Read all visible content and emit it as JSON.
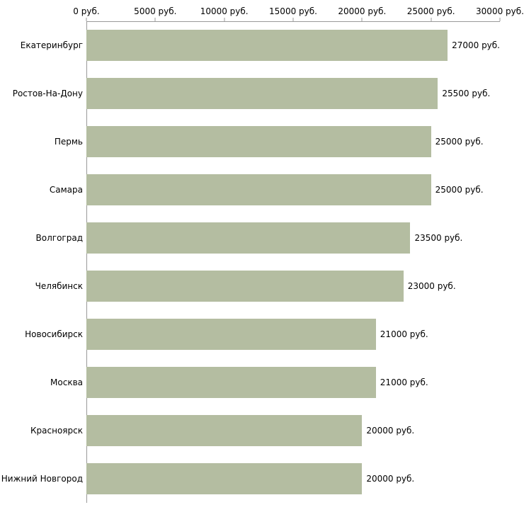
{
  "chart_data": {
    "type": "bar",
    "orientation": "horizontal",
    "title": "",
    "xlabel": "",
    "ylabel": "",
    "categories": [
      "Екатеринбург",
      "Ростов-На-Дону",
      "Пермь",
      "Самара",
      "Волгоград",
      "Челябинск",
      "Новосибирск",
      "Москва",
      "Красноярск",
      "Нижний Новгород"
    ],
    "values": [
      27000,
      25500,
      25000,
      25000,
      23500,
      23000,
      21000,
      21000,
      20000,
      20000
    ],
    "value_labels": [
      "27000 руб.",
      "25500 руб.",
      "25000 руб.",
      "25000 руб.",
      "23500 руб.",
      "23000 руб.",
      "21000 руб.",
      "21000 руб.",
      "20000 руб.",
      "20000 руб."
    ],
    "x_ticks": [
      {
        "value": 0,
        "label": "0 руб."
      },
      {
        "value": 5000,
        "label": "5000 руб."
      },
      {
        "value": 10000,
        "label": "10000 руб."
      },
      {
        "value": 15000,
        "label": "15000 руб."
      },
      {
        "value": 20000,
        "label": "20000 руб."
      },
      {
        "value": 25000,
        "label": "25000 руб."
      },
      {
        "value": 30000,
        "label": "30000 руб."
      }
    ],
    "xlim": [
      0,
      30000
    ],
    "grid": false,
    "legend": false,
    "bar_color": "#b4bda1",
    "axis_color": "#9a9a9a",
    "text_color": "#000000",
    "background_color": "#ffffff"
  }
}
